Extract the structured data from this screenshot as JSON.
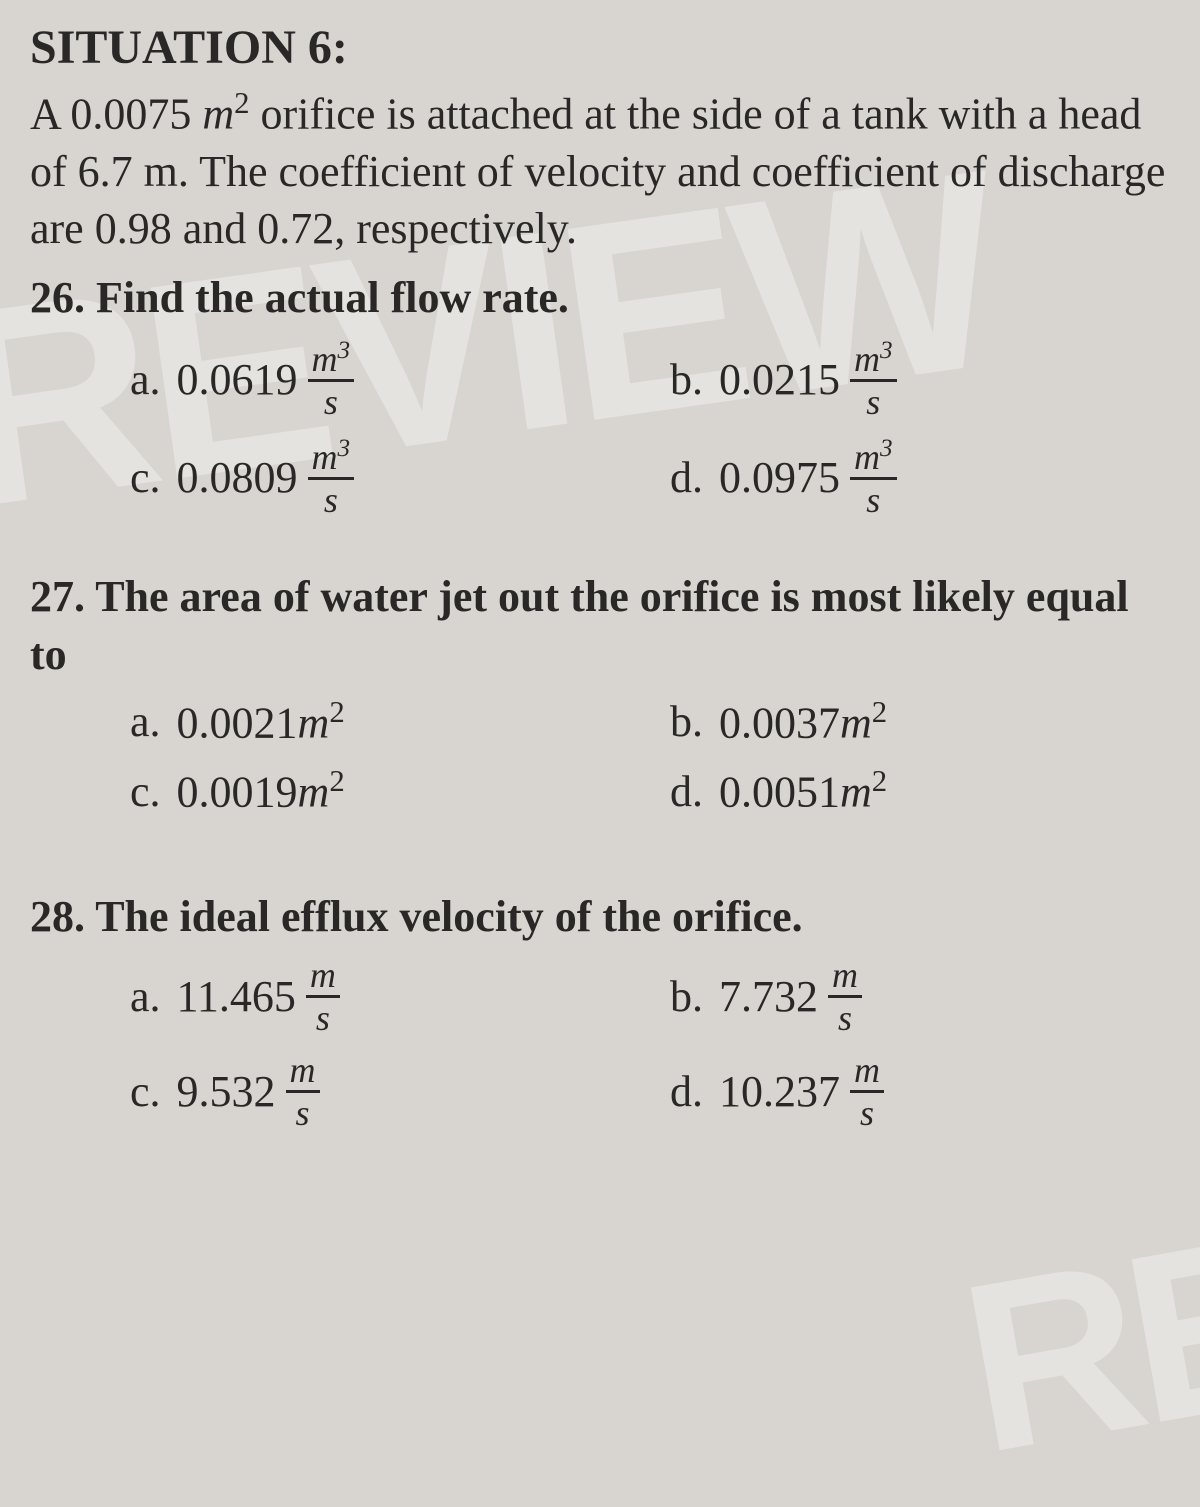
{
  "colors": {
    "background": "#d8d5d0",
    "text": "#2a2826",
    "watermark": "rgba(255,255,255,0.35)"
  },
  "typography": {
    "title_size": 48,
    "body_size": 44,
    "fraction_size": 36
  },
  "watermark_text": "REVIEW",
  "situation": {
    "title": "SITUATION 6:",
    "statement_parts": {
      "p1": "A 0.0075 ",
      "unit1": "m",
      "exp1": "2",
      "p2": " orifice is attached at the side of a tank with a head of 6.7 m. The coefficient of velocity and coefficient of discharge are 0.98 and 0.72, respectively."
    }
  },
  "q26": {
    "text": "26. Find the actual flow rate.",
    "options": {
      "a": {
        "label": "a.",
        "value": "0.0619",
        "unit_num": "m",
        "unit_exp": "3",
        "unit_den": "s"
      },
      "b": {
        "label": "b.",
        "value": "0.0215",
        "unit_num": "m",
        "unit_exp": "3",
        "unit_den": "s"
      },
      "c": {
        "label": "c.",
        "value": "0.0809",
        "unit_num": "m",
        "unit_exp": "3",
        "unit_den": "s"
      },
      "d": {
        "label": "d.",
        "value": "0.0975",
        "unit_num": "m",
        "unit_exp": "3",
        "unit_den": "s"
      }
    }
  },
  "q27": {
    "text": "27. The area of water jet out the orifice is most likely equal to",
    "options": {
      "a": {
        "label": "a.",
        "value": "0.0021",
        "unit": "m",
        "exp": "2"
      },
      "b": {
        "label": "b.",
        "value": "0.0037",
        "unit": "m",
        "exp": "2"
      },
      "c": {
        "label": "c.",
        "value": "0.0019",
        "unit": "m",
        "exp": "2"
      },
      "d": {
        "label": "d.",
        "value": "0.0051",
        "unit": "m",
        "exp": "2"
      }
    }
  },
  "q28": {
    "text": "28. The ideal efflux velocity of the orifice.",
    "options": {
      "a": {
        "label": "a.",
        "value": "11.465",
        "unit_num": "m",
        "unit_den": "s"
      },
      "b": {
        "label": "b.",
        "value": "7.732",
        "unit_num": "m",
        "unit_den": "s"
      },
      "c": {
        "label": "c.",
        "value": "9.532",
        "unit_num": "m",
        "unit_den": "s"
      },
      "d": {
        "label": "d.",
        "value": "10.237",
        "unit_num": "m",
        "unit_den": "s"
      }
    }
  }
}
